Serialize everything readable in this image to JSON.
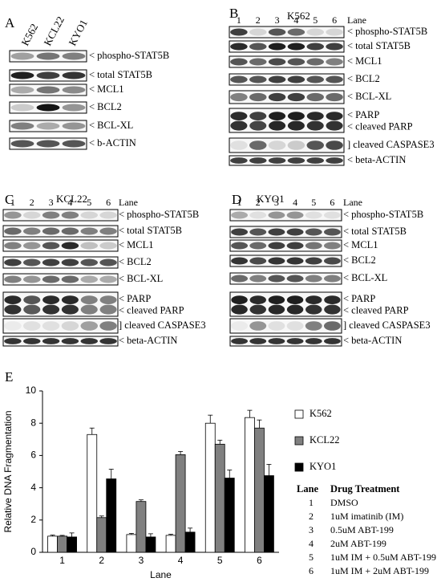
{
  "panels": [
    {
      "letter": "A",
      "title": "",
      "lane_header": "",
      "lanes": [],
      "sample_labels": [
        "K562",
        "KCL22",
        "KYO1"
      ],
      "rows": [
        {
          "label": "< phospho-STAT5B",
          "bands": [
            0.35,
            0.55,
            0.5
          ]
        },
        {
          "label": "< total STAT5B",
          "bands": [
            0.95,
            0.8,
            0.85
          ]
        },
        {
          "label": "< MCL1",
          "bands": [
            0.3,
            0.55,
            0.45
          ]
        },
        {
          "label": "< BCL2",
          "bands": [
            0.15,
            1.0,
            0.4
          ]
        },
        {
          "label": "< BCL-XL",
          "bands": [
            0.5,
            0.3,
            0.4
          ]
        },
        {
          "label": "< b-ACTIN",
          "bands": [
            0.7,
            0.7,
            0.7
          ]
        }
      ]
    },
    {
      "letter": "B",
      "title": "K562",
      "lane_header": "Lane",
      "lanes": [
        "1",
        "2",
        "3",
        "4",
        "5",
        "6"
      ],
      "sample_labels": [],
      "rows": [
        {
          "label": "< phospho-STAT5B",
          "bands": [
            0.8,
            0.1,
            0.7,
            0.6,
            0.1,
            0.1
          ]
        },
        {
          "label": "< total STAT5B",
          "bands": [
            0.9,
            0.7,
            0.95,
            0.95,
            0.8,
            0.8
          ]
        },
        {
          "label": "< MCL1",
          "bands": [
            0.7,
            0.6,
            0.75,
            0.7,
            0.6,
            0.5
          ]
        },
        {
          "label": "< BCL2",
          "bands": [
            0.7,
            0.7,
            0.8,
            0.8,
            0.7,
            0.7
          ]
        },
        {
          "label": "< BCL-XL",
          "bands": [
            0.5,
            0.6,
            0.8,
            0.8,
            0.6,
            0.6
          ]
        },
        {
          "label": "< PARP\n< cleaved PARP",
          "bands": [
            0.9,
            0.8,
            0.95,
            0.95,
            0.9,
            0.9
          ],
          "double": true
        },
        {
          "label": "] cleaved CASPASE3",
          "bands": [
            0.05,
            0.6,
            0.1,
            0.15,
            0.7,
            0.75
          ]
        },
        {
          "label": "< beta-ACTIN",
          "bands": [
            0.8,
            0.8,
            0.8,
            0.8,
            0.8,
            0.8
          ]
        }
      ]
    },
    {
      "letter": "C",
      "title": "KCL22",
      "lane_header": "Lane",
      "lanes": [
        "1",
        "2",
        "3",
        "4",
        "5",
        "6"
      ],
      "sample_labels": [],
      "rows": [
        {
          "label": "< phospho-STAT5B",
          "bands": [
            0.4,
            0.1,
            0.5,
            0.5,
            0.1,
            0.1
          ]
        },
        {
          "label": "< total STAT5B",
          "bands": [
            0.6,
            0.5,
            0.6,
            0.6,
            0.5,
            0.5
          ]
        },
        {
          "label": "< MCL1",
          "bands": [
            0.5,
            0.4,
            0.7,
            0.9,
            0.2,
            0.15
          ]
        },
        {
          "label": "< BCL2",
          "bands": [
            0.8,
            0.7,
            0.8,
            0.8,
            0.7,
            0.7
          ]
        },
        {
          "label": "< BCL-XL",
          "bands": [
            0.5,
            0.4,
            0.6,
            0.6,
            0.3,
            0.3
          ]
        },
        {
          "label": "< PARP\n< cleaved PARP",
          "bands": [
            0.9,
            0.7,
            0.9,
            0.9,
            0.5,
            0.5
          ],
          "double": true
        },
        {
          "label": "] cleaved CASPASE3",
          "bands": [
            0.0,
            0.05,
            0.05,
            0.1,
            0.35,
            0.5
          ]
        },
        {
          "label": "< beta-ACTIN",
          "bands": [
            0.85,
            0.85,
            0.85,
            0.85,
            0.85,
            0.85
          ]
        }
      ]
    },
    {
      "letter": "D",
      "title": "KYO1",
      "lane_header": "Lane",
      "lanes": [
        "1",
        "2",
        "3",
        "4",
        "5",
        "6"
      ],
      "sample_labels": [],
      "rows": [
        {
          "label": "< phospho-STAT5B",
          "bands": [
            0.3,
            0.05,
            0.4,
            0.4,
            0.05,
            0.05
          ]
        },
        {
          "label": "< total STAT5B",
          "bands": [
            0.8,
            0.7,
            0.8,
            0.8,
            0.7,
            0.7
          ]
        },
        {
          "label": "< MCL1",
          "bands": [
            0.7,
            0.6,
            0.8,
            0.8,
            0.55,
            0.5
          ]
        },
        {
          "label": "< BCL2",
          "bands": [
            0.85,
            0.75,
            0.85,
            0.85,
            0.8,
            0.75
          ]
        },
        {
          "label": "< BCL-XL",
          "bands": [
            0.6,
            0.5,
            0.7,
            0.7,
            0.5,
            0.5
          ]
        },
        {
          "label": "< PARP\n< cleaved PARP",
          "bands": [
            0.95,
            0.9,
            0.95,
            0.95,
            0.9,
            0.9
          ],
          "double": true
        },
        {
          "label": "] cleaved CASPASE3",
          "bands": [
            0.0,
            0.4,
            0.05,
            0.05,
            0.5,
            0.6
          ]
        },
        {
          "label": "< beta-ACTIN",
          "bands": [
            0.85,
            0.85,
            0.85,
            0.85,
            0.85,
            0.85
          ]
        }
      ]
    }
  ],
  "panel_e": {
    "letter": "E",
    "legend_header_lane": "Lane",
    "legend_header_treatment": "Drug Treatment",
    "treatments": [
      {
        "lane": "1",
        "text": "DMSO"
      },
      {
        "lane": "2",
        "text": "1uM imatinib (IM)"
      },
      {
        "lane": "3",
        "text": "0.5uM ABT-199"
      },
      {
        "lane": "4",
        "text": "2uM ABT-199"
      },
      {
        "lane": "5",
        "text": "1uM IM + 0.5uM ABT-199"
      },
      {
        "lane": "6",
        "text": "1uM IM + 2uM ABT-199"
      }
    ]
  },
  "chart_data": {
    "type": "bar",
    "title": "",
    "xlabel": "Lane",
    "ylabel": "Relative DNA Fragmentation",
    "categories": [
      "1",
      "2",
      "3",
      "4",
      "5",
      "6"
    ],
    "ylim": [
      0,
      10
    ],
    "yticks": [
      "0",
      "2",
      "4",
      "6",
      "8",
      "10"
    ],
    "grid": false,
    "legend_placement": "top-right",
    "series": [
      {
        "name": "K562",
        "color": "#ffffff",
        "values": [
          1.0,
          7.3,
          1.1,
          1.05,
          8.0,
          8.35
        ],
        "errors": [
          0.07,
          0.4,
          0.07,
          0.07,
          0.5,
          0.45
        ]
      },
      {
        "name": "KCL22",
        "color": "#808080",
        "values": [
          1.0,
          2.15,
          3.15,
          6.05,
          6.7,
          7.7
        ],
        "errors": [
          0.05,
          0.1,
          0.1,
          0.2,
          0.25,
          0.5
        ]
      },
      {
        "name": "KYO1",
        "color": "#000000",
        "values": [
          0.95,
          4.55,
          0.95,
          1.25,
          4.6,
          4.75
        ],
        "errors": [
          0.25,
          0.6,
          0.2,
          0.25,
          0.5,
          0.7
        ]
      }
    ]
  }
}
